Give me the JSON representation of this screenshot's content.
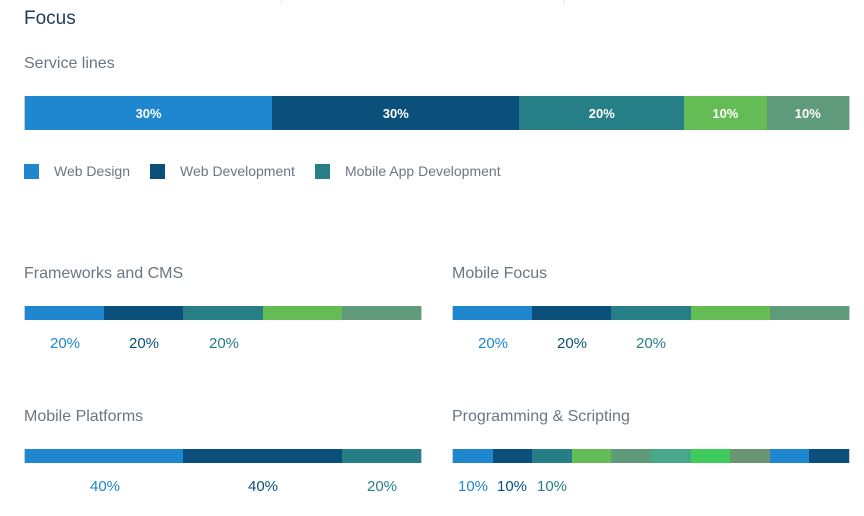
{
  "title": "Focus",
  "colors": {
    "blue": "#1e87d0",
    "navy": "#0b4f7b",
    "teal": "#267f86",
    "green": "#64bc55",
    "sage": "#5f9a7a",
    "mint": "#48a889",
    "bright_green": "#3fcc5c",
    "olive": "#6b9672"
  },
  "service_lines": {
    "label": "Service lines",
    "segments": [
      {
        "label": "30%",
        "value": 30,
        "color": "#1e87d0"
      },
      {
        "label": "30%",
        "value": 30,
        "color": "#0b4f7b"
      },
      {
        "label": "20%",
        "value": 20,
        "color": "#267f86"
      },
      {
        "label": "10%",
        "value": 10,
        "color": "#64bc55"
      },
      {
        "label": "10%",
        "value": 10,
        "color": "#5f9a7a"
      }
    ],
    "legend": [
      {
        "label": "Web Design",
        "color": "#1e87d0"
      },
      {
        "label": "Web Development",
        "color": "#0b4f7b"
      },
      {
        "label": "Mobile App Development",
        "color": "#267f86"
      }
    ]
  },
  "frameworks": {
    "label": "Frameworks and CMS",
    "segments": [
      {
        "value": 20,
        "color": "#1e87d0"
      },
      {
        "value": 20,
        "color": "#0b4f7b"
      },
      {
        "value": 20,
        "color": "#267f86"
      },
      {
        "value": 20,
        "color": "#64bc55"
      },
      {
        "value": 20,
        "color": "#5f9a7a"
      }
    ],
    "percents": [
      {
        "label": "20%",
        "color": "#1e87d0"
      },
      {
        "label": "20%",
        "color": "#0b4f7b"
      },
      {
        "label": "20%",
        "color": "#267f86"
      }
    ]
  },
  "mobile_focus": {
    "label": "Mobile Focus",
    "segments": [
      {
        "value": 20,
        "color": "#1e87d0"
      },
      {
        "value": 20,
        "color": "#0b4f7b"
      },
      {
        "value": 20,
        "color": "#267f86"
      },
      {
        "value": 20,
        "color": "#64bc55"
      },
      {
        "value": 20,
        "color": "#5f9a7a"
      }
    ],
    "percents": [
      {
        "label": "20%",
        "color": "#1e87d0"
      },
      {
        "label": "20%",
        "color": "#0b4f7b"
      },
      {
        "label": "20%",
        "color": "#267f86"
      }
    ]
  },
  "mobile_platforms": {
    "label": "Mobile Platforms",
    "segments": [
      {
        "value": 40,
        "color": "#1e87d0"
      },
      {
        "value": 40,
        "color": "#0b4f7b"
      },
      {
        "value": 20,
        "color": "#267f86"
      }
    ],
    "percents": [
      {
        "label": "40%",
        "color": "#1e87d0"
      },
      {
        "label": "40%",
        "color": "#0b4f7b"
      },
      {
        "label": "20%",
        "color": "#267f86"
      }
    ]
  },
  "programming": {
    "label": "Programming & Scripting",
    "segments": [
      {
        "value": 10,
        "color": "#1e87d0"
      },
      {
        "value": 10,
        "color": "#0b4f7b"
      },
      {
        "value": 10,
        "color": "#267f86"
      },
      {
        "value": 10,
        "color": "#64bc55"
      },
      {
        "value": 10,
        "color": "#5f9a7a"
      },
      {
        "value": 10,
        "color": "#48a889"
      },
      {
        "value": 10,
        "color": "#3fcc5c"
      },
      {
        "value": 10,
        "color": "#6b9672"
      },
      {
        "value": 10,
        "color": "#1e87d0"
      },
      {
        "value": 10,
        "color": "#0b4f7b"
      }
    ],
    "percents": [
      {
        "label": "10%",
        "color": "#1e87d0"
      },
      {
        "label": "10%",
        "color": "#0b4f7b"
      },
      {
        "label": "10%",
        "color": "#267f86"
      }
    ]
  }
}
